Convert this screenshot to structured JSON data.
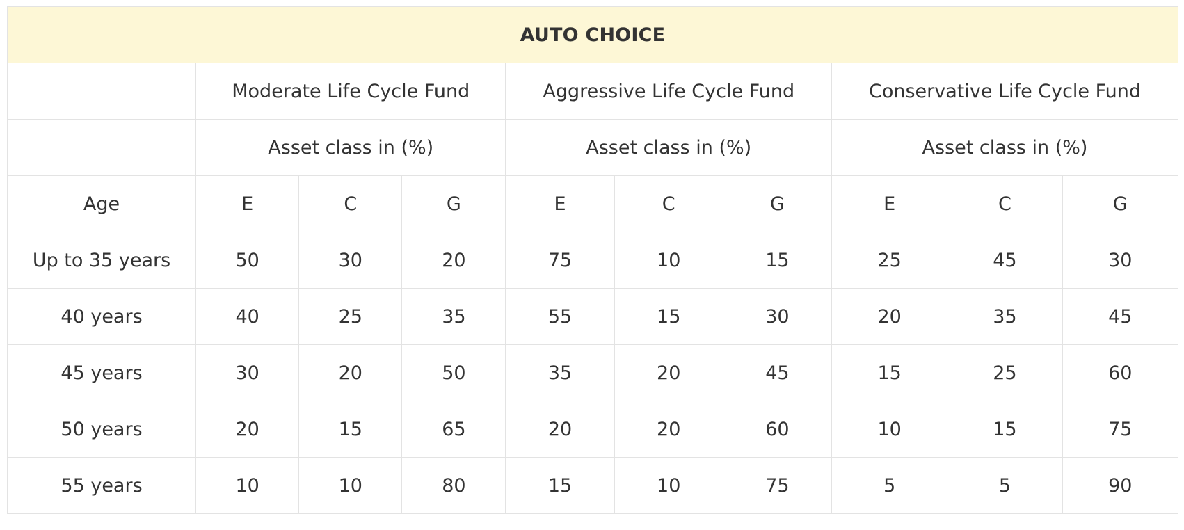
{
  "table": {
    "title": "AUTO CHOICE",
    "fund_row": [
      "",
      "Moderate Life Cycle Fund",
      "Aggressive Life Cycle Fund",
      "Conservative Life Cycle Fund"
    ],
    "asset_row": [
      "",
      "Asset class in (%)",
      "Asset class in (%)",
      "Asset class in (%)"
    ],
    "column_headers": [
      "Age",
      "E",
      "C",
      "G",
      "E",
      "C",
      "G",
      "E",
      "C",
      "G"
    ],
    "rows": [
      [
        "Up to 35 years",
        "50",
        "30",
        "20",
        "75",
        "10",
        "15",
        "25",
        "45",
        "30"
      ],
      [
        "40 years",
        "40",
        "25",
        "35",
        "55",
        "15",
        "30",
        "20",
        "35",
        "45"
      ],
      [
        "45 years",
        "30",
        "20",
        "50",
        "35",
        "20",
        "45",
        "15",
        "25",
        "60"
      ],
      [
        "50 years",
        "20",
        "15",
        "65",
        "20",
        "20",
        "60",
        "10",
        "15",
        "75"
      ],
      [
        "55 years",
        "10",
        "10",
        "80",
        "15",
        "10",
        "75",
        "5",
        "5",
        "90"
      ]
    ]
  },
  "colors": {
    "title_background": "#fdf7d6",
    "border": "#e3e3e3",
    "text": "#333333"
  }
}
